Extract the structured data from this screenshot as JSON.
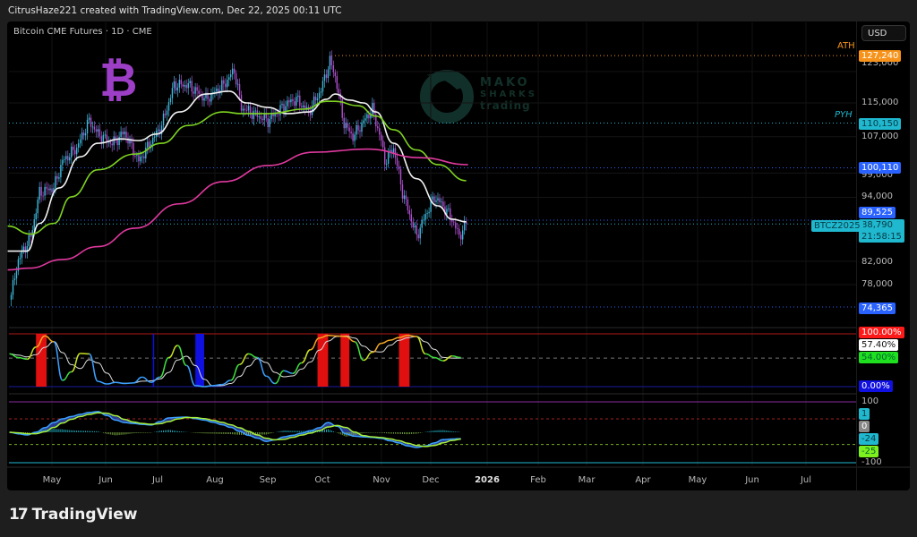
{
  "header": {
    "attribution": "CitrusHaze221 created with TradingView.com, Dec 22, 2025 00:11 UTC",
    "symbol_title": "Bitcoin CME Futures · 1D · CME",
    "currency": "USD"
  },
  "logos": {
    "bitcoin_symbol": "₿",
    "watermark_lines": [
      "MAKO",
      "SHARKS",
      "trading"
    ],
    "footer_brand": "TradingView",
    "footer_mark": "17"
  },
  "colors": {
    "up_candle": "#3fb8dc",
    "down_candle": "#b04fcf",
    "ma_fast": "#f2f2f2",
    "ma_mid": "#7ed321",
    "ma_slow": "#e0399f",
    "ath": "#f7931a",
    "pyh": "#1fb8cf",
    "level_blue": "#2962ff",
    "overbought": "#e01010",
    "oversold": "#1010e0"
  },
  "price_axis": {
    "scale": "log",
    "ticks": [
      "123,000",
      "115,000",
      "107,000",
      "99,000",
      "94,000",
      "82,000",
      "78,000"
    ],
    "tick_values": [
      123000,
      115000,
      107000,
      99000,
      94000,
      82000,
      78000
    ]
  },
  "levels": {
    "ath": {
      "label": "ATH",
      "value": 127240,
      "badge": "127,240"
    },
    "pyh": {
      "label": "PYH",
      "value": 110150,
      "badge": "110,150"
    },
    "blue_1": {
      "value": 100110,
      "badge": "100,110"
    },
    "blue_2": {
      "value": 89525,
      "badge": "89,525"
    },
    "blue_3": {
      "value": 74365,
      "badge": "74,365"
    },
    "current": {
      "symbol": "BTCZ2025",
      "value": 88790,
      "badge": "88,790",
      "countdown": "21:58:15"
    }
  },
  "oscillator_badges": [
    "100.00%",
    "57.40%",
    "54.00%",
    "0.00%"
  ],
  "macd_badges": [
    "100",
    "1",
    "0",
    "-24",
    "-25",
    "-100"
  ],
  "time_axis": [
    "May",
    "Jun",
    "Jul",
    "Aug",
    "Sep",
    "Oct",
    "Nov",
    "Dec",
    "2026",
    "Feb",
    "Mar",
    "Apr",
    "May",
    "Jun",
    "Jul"
  ],
  "chart_data": [
    {
      "type": "candlestick",
      "title": "Bitcoin CME Futures · 1D · CME",
      "y_scale": "log",
      "ylim": [
        72000,
        131000
      ],
      "xlim": [
        "2025-04-06",
        "2026-07-31"
      ],
      "grid": true,
      "close_path": {
        "x": [
          "2025-04-08",
          "2025-04-12",
          "2025-04-19",
          "2025-04-24",
          "2025-05-02",
          "2025-05-07",
          "2025-05-15",
          "2025-05-22",
          "2025-05-27",
          "2025-06-04",
          "2025-06-11",
          "2025-06-19",
          "2025-06-27",
          "2025-07-02",
          "2025-07-09",
          "2025-07-17",
          "2025-07-27",
          "2025-08-06",
          "2025-08-12",
          "2025-08-16",
          "2025-08-26",
          "2025-08-31",
          "2025-09-11",
          "2025-09-16",
          "2025-09-23",
          "2025-09-30",
          "2025-10-05",
          "2025-10-08",
          "2025-10-13",
          "2025-10-18",
          "2025-10-24",
          "2025-10-29",
          "2025-11-03",
          "2025-11-05",
          "2025-11-10",
          "2025-11-15",
          "2025-11-23",
          "2025-11-28",
          "2025-12-03",
          "2025-12-08",
          "2025-12-13",
          "2025-12-17",
          "2025-12-21"
        ],
        "y": [
          76300,
          82300,
          86300,
          95000,
          95900,
          101500,
          104500,
          110700,
          107600,
          105500,
          108000,
          101500,
          106500,
          109600,
          119500,
          119500,
          115900,
          119500,
          123400,
          113900,
          111800,
          110700,
          115000,
          115900,
          112800,
          118300,
          125800,
          121800,
          110000,
          107000,
          110500,
          113500,
          106000,
          101500,
          104500,
          95000,
          86500,
          90500,
          94100,
          92300,
          89700,
          86500,
          88790
        ]
      },
      "moving_averages": [
        {
          "color": "#f2f2f2",
          "x": [
            "2025-04-06",
            "2025-04-17",
            "2025-04-24",
            "2025-05-05",
            "2025-05-17",
            "2025-05-27",
            "2025-06-09",
            "2025-06-19",
            "2025-06-29",
            "2025-07-12",
            "2025-07-27",
            "2025-08-09",
            "2025-08-19",
            "2025-08-31",
            "2025-09-11",
            "2025-09-23",
            "2025-10-03",
            "2025-10-08",
            "2025-10-16",
            "2025-10-24",
            "2025-10-31",
            "2025-11-10",
            "2025-11-23",
            "2025-12-05",
            "2025-12-13",
            "2025-12-21"
          ],
          "y": [
            83800,
            83800,
            88900,
            95900,
            102500,
            105500,
            106500,
            106100,
            107600,
            112800,
            117200,
            117900,
            115000,
            113900,
            112400,
            112800,
            115900,
            117200,
            115700,
            115000,
            112800,
            105500,
            97800,
            92300,
            89700,
            89200
          ]
        },
        {
          "color": "#7ed321",
          "x": [
            "2025-04-06",
            "2025-04-19",
            "2025-05-02",
            "2025-05-12",
            "2025-05-27",
            "2025-06-17",
            "2025-07-02",
            "2025-07-17",
            "2025-08-06",
            "2025-08-16",
            "2025-08-31",
            "2025-09-21",
            "2025-10-03",
            "2025-10-08",
            "2025-10-21",
            "2025-10-31",
            "2025-11-10",
            "2025-11-23",
            "2025-12-05",
            "2025-12-21"
          ],
          "y": [
            88400,
            86900,
            88900,
            94100,
            99700,
            103100,
            105500,
            109600,
            112800,
            112400,
            112400,
            113500,
            115400,
            115400,
            114300,
            111800,
            108600,
            104000,
            100800,
            97400
          ]
        },
        {
          "color": "#e0399f",
          "x": [
            "2025-04-06",
            "2025-04-18",
            "2025-05-07",
            "2025-05-27",
            "2025-06-17",
            "2025-07-12",
            "2025-08-06",
            "2025-08-31",
            "2025-09-26",
            "2025-10-26",
            "2025-11-25",
            "2025-12-22"
          ],
          "y": [
            80500,
            80800,
            82300,
            84600,
            88000,
            92700,
            97200,
            100600,
            103500,
            104200,
            102300,
            100800
          ]
        }
      ]
    },
    {
      "type": "line",
      "ylim": [
        0,
        100
      ],
      "levels": [
        100,
        54,
        0
      ],
      "x_start": "2025-04-07",
      "x_step_days": 5,
      "values": [
        62,
        55,
        52,
        75,
        96,
        85,
        12,
        28,
        63,
        62,
        10,
        5,
        8,
        6,
        7,
        18,
        8,
        18,
        55,
        78,
        40,
        2,
        0,
        2,
        4,
        12,
        42,
        62,
        55,
        20,
        6,
        30,
        25,
        45,
        70,
        92,
        97,
        96,
        95,
        85,
        50,
        65,
        82,
        88,
        93,
        97,
        95,
        62,
        55,
        49,
        58,
        55
      ],
      "overbought_ranges": [
        [
          "2025-04-22",
          "2025-04-28"
        ],
        [
          "2025-09-28",
          "2025-10-04"
        ],
        [
          "2025-10-11",
          "2025-10-16"
        ],
        [
          "2025-11-13",
          "2025-11-19"
        ]
      ],
      "oversold_ranges": [
        [
          "2025-06-27",
          "2025-06-27"
        ],
        [
          "2025-07-21",
          "2025-07-26"
        ]
      ]
    },
    {
      "type": "line",
      "ylim": [
        -100,
        100
      ],
      "x_start": "2025-04-07",
      "x_step_days": 5,
      "values": [
        0,
        -5,
        -9,
        0,
        15,
        32,
        44,
        52,
        59,
        65,
        68,
        55,
        40,
        32,
        29,
        26,
        24,
        35,
        47,
        49,
        50,
        45,
        40,
        33,
        25,
        16,
        3,
        -10,
        -19,
        -30,
        -25,
        -15,
        -10,
        -3,
        5,
        15,
        32,
        20,
        -5,
        -13,
        -15,
        -17,
        -20,
        -28,
        -35,
        -45,
        -50,
        -45,
        -35,
        -24,
        -22,
        -21
      ]
    }
  ]
}
